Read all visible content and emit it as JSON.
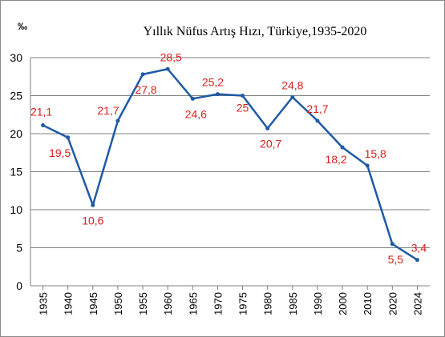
{
  "chart_data": {
    "type": "line",
    "title": "Yıllık Nüfus Artış Hızı, Türkiye,1935-2020",
    "ylabel": "‰",
    "xlabel": "",
    "ylim": [
      0,
      30
    ],
    "yticks": [
      "0",
      "5",
      "10",
      "15",
      "20",
      "25",
      "30"
    ],
    "grid": true,
    "categories": [
      "1935",
      "1940",
      "1945",
      "1950",
      "1955",
      "1960",
      "1965",
      "1970",
      "1975",
      "1980",
      "1985",
      "1990",
      "2000",
      "2010",
      "2020",
      "2024"
    ],
    "series": [
      {
        "values": [
          21.1,
          19.5,
          10.6,
          21.7,
          27.8,
          28.5,
          24.6,
          25.2,
          25,
          20.7,
          24.8,
          21.7,
          18.2,
          15.8,
          5.5,
          3.4
        ],
        "labels": [
          "21,1",
          "19,5",
          "10,6",
          "21,7",
          "27,8",
          "28,5",
          "24,6",
          "25,2",
          "25",
          "20,7",
          "24,8",
          "21,7",
          "18,2",
          "15,8",
          "5,5",
          "3,4"
        ],
        "color": "#1f5aa6",
        "label_color": "#d9221d"
      }
    ]
  }
}
